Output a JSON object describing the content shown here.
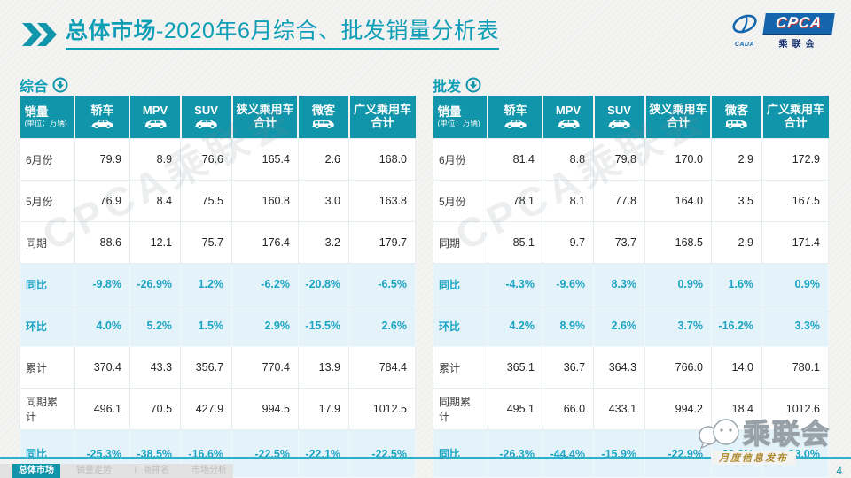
{
  "page": {
    "title_bold": "总体市场",
    "title_rest": "-2020年6月综合、批发销量分析表",
    "page_number": "4",
    "footer_note": "月度信息发布",
    "watermark": "CPCA乘联会",
    "accent_color": "#1095ab",
    "percent_text_color": "#1ba3c4",
    "percent_row_bg": "#e3f3f9"
  },
  "logo": {
    "badge": "CPCA",
    "sub": "乘联会",
    "cada": "CADA"
  },
  "wechat_mark": {
    "text": "乘联会",
    "icon": "wechat-bubbles-icon"
  },
  "nav": {
    "tabs": [
      {
        "label": "总体市场",
        "active": true
      },
      {
        "label": "销量走势",
        "active": false
      },
      {
        "label": "厂商排名",
        "active": false
      },
      {
        "label": "市场分析",
        "active": false
      }
    ]
  },
  "tables": [
    {
      "section": "综合",
      "section_icon": "circle-down-arrow-icon",
      "header": {
        "label": "销量",
        "unit": "(单位：万辆)",
        "cols": [
          {
            "label": "轿车",
            "icon": "sedan-icon"
          },
          {
            "label": "MPV",
            "icon": "mpv-icon"
          },
          {
            "label": "SUV",
            "icon": "suv-icon"
          },
          {
            "label": "狭义乘用车",
            "sub": "合计"
          },
          {
            "label": "微客",
            "icon": "minibus-icon"
          },
          {
            "label": "广义乘用车",
            "sub": "合计"
          }
        ]
      },
      "rows": [
        {
          "label": "6月份",
          "type": "normal",
          "values": [
            "79.9",
            "8.9",
            "76.6",
            "165.4",
            "2.6",
            "168.0"
          ]
        },
        {
          "label": "5月份",
          "type": "normal",
          "values": [
            "76.9",
            "8.4",
            "75.5",
            "160.8",
            "3.0",
            "163.8"
          ]
        },
        {
          "label": "同期",
          "type": "normal",
          "values": [
            "88.6",
            "12.1",
            "75.7",
            "176.4",
            "3.2",
            "179.7"
          ]
        },
        {
          "label": "同比",
          "type": "percent",
          "values": [
            "-9.8%",
            "-26.9%",
            "1.2%",
            "-6.2%",
            "-20.8%",
            "-6.5%"
          ]
        },
        {
          "label": "环比",
          "type": "percent",
          "values": [
            "4.0%",
            "5.2%",
            "1.5%",
            "2.9%",
            "-15.5%",
            "2.6%"
          ]
        },
        {
          "label": "累计",
          "type": "normal",
          "values": [
            "370.4",
            "43.3",
            "356.7",
            "770.4",
            "13.9",
            "784.4"
          ]
        },
        {
          "label": "同期累计",
          "type": "normal",
          "values": [
            "496.1",
            "70.5",
            "427.9",
            "994.5",
            "17.9",
            "1012.5"
          ]
        },
        {
          "label": "同比",
          "type": "percent",
          "values": [
            "-25.3%",
            "-38.5%",
            "-16.6%",
            "-22.5%",
            "-22.1%",
            "-22.5%"
          ]
        }
      ]
    },
    {
      "section": "批发",
      "section_icon": "circle-down-arrow-icon",
      "header": {
        "label": "销量",
        "unit": "(单位：万辆)",
        "cols": [
          {
            "label": "轿车",
            "icon": "sedan-icon"
          },
          {
            "label": "MPV",
            "icon": "mpv-icon"
          },
          {
            "label": "SUV",
            "icon": "suv-icon"
          },
          {
            "label": "狭义乘用车",
            "sub": "合计"
          },
          {
            "label": "微客",
            "icon": "minibus-icon"
          },
          {
            "label": "广义乘用车",
            "sub": "合计"
          }
        ]
      },
      "rows": [
        {
          "label": "6月份",
          "type": "normal",
          "values": [
            "81.4",
            "8.8",
            "79.8",
            "170.0",
            "2.9",
            "172.9"
          ]
        },
        {
          "label": "5月份",
          "type": "normal",
          "values": [
            "78.1",
            "8.1",
            "77.8",
            "164.0",
            "3.5",
            "167.5"
          ]
        },
        {
          "label": "同期",
          "type": "normal",
          "values": [
            "85.1",
            "9.7",
            "73.7",
            "168.5",
            "2.9",
            "171.4"
          ]
        },
        {
          "label": "同比",
          "type": "percent",
          "values": [
            "-4.3%",
            "-9.6%",
            "8.3%",
            "0.9%",
            "1.6%",
            "0.9%"
          ]
        },
        {
          "label": "环比",
          "type": "percent",
          "values": [
            "4.2%",
            "8.9%",
            "2.6%",
            "3.7%",
            "-16.2%",
            "3.3%"
          ]
        },
        {
          "label": "累计",
          "type": "normal",
          "values": [
            "365.1",
            "36.7",
            "364.3",
            "766.0",
            "14.0",
            "780.1"
          ]
        },
        {
          "label": "同期累计",
          "type": "normal",
          "values": [
            "495.1",
            "66.0",
            "433.1",
            "994.2",
            "18.4",
            "1012.6"
          ]
        },
        {
          "label": "同比",
          "type": "percent",
          "values": [
            "-26.3%",
            "-44.4%",
            "-15.9%",
            "-22.9%",
            "-23.8%",
            "-23.0%"
          ]
        }
      ]
    }
  ]
}
